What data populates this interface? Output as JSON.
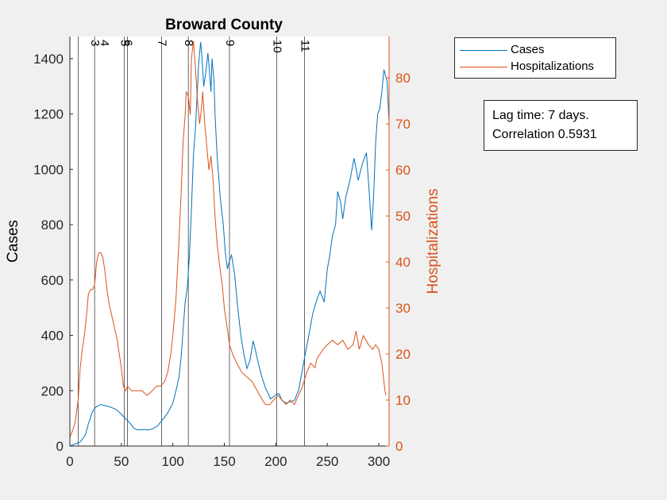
{
  "chart_data": {
    "type": "line",
    "title": "Broward County",
    "xlabel": "",
    "ylabel_left": "Cases",
    "ylabel_right": "Hospitalizations",
    "xlim": [
      0,
      310
    ],
    "ylim_left": [
      0,
      1480
    ],
    "ylim_right": [
      0,
      89
    ],
    "x_ticks": [
      0,
      50,
      100,
      150,
      200,
      250,
      300
    ],
    "y_ticks_left": [
      0,
      200,
      400,
      600,
      800,
      1000,
      1200,
      1400
    ],
    "y_ticks_right": [
      0,
      10,
      20,
      30,
      40,
      50,
      60,
      70,
      80
    ],
    "legend_position": "outside-top-right",
    "grid": false,
    "colors": {
      "cases": "#0072bd",
      "hospitalizations": "#d95319",
      "event_lines": "#000000"
    },
    "event_markers": [
      {
        "label": "3",
        "x": 24
      },
      {
        "label": "4",
        "x": 33
      },
      {
        "label": "5",
        "x": 53
      },
      {
        "label": "6",
        "x": 56
      },
      {
        "label": "7",
        "x": 89
      },
      {
        "label": "8",
        "x": 115
      },
      {
        "label": "9",
        "x": 155
      },
      {
        "label": "10",
        "x": 201
      },
      {
        "label": "11",
        "x": 228
      }
    ],
    "event_line_x": [
      8,
      24,
      53,
      56,
      89,
      115,
      155,
      201,
      228
    ],
    "series": [
      {
        "name": "Cases",
        "axis": "left",
        "points": [
          [
            0,
            0
          ],
          [
            10,
            15
          ],
          [
            15,
            40
          ],
          [
            18,
            80
          ],
          [
            22,
            125
          ],
          [
            25,
            140
          ],
          [
            30,
            150
          ],
          [
            35,
            145
          ],
          [
            40,
            140
          ],
          [
            45,
            132
          ],
          [
            50,
            115
          ],
          [
            55,
            95
          ],
          [
            58,
            85
          ],
          [
            62,
            65
          ],
          [
            66,
            58
          ],
          [
            72,
            60
          ],
          [
            76,
            58
          ],
          [
            80,
            62
          ],
          [
            85,
            72
          ],
          [
            90,
            95
          ],
          [
            95,
            120
          ],
          [
            100,
            155
          ],
          [
            103,
            200
          ],
          [
            106,
            250
          ],
          [
            108,
            320
          ],
          [
            110,
            420
          ],
          [
            112,
            520
          ],
          [
            114,
            570
          ],
          [
            116,
            680
          ],
          [
            118,
            850
          ],
          [
            120,
            1050
          ],
          [
            122,
            1150
          ],
          [
            124,
            1300
          ],
          [
            125,
            1380
          ],
          [
            127,
            1460
          ],
          [
            128,
            1420
          ],
          [
            130,
            1300
          ],
          [
            132,
            1350
          ],
          [
            134,
            1420
          ],
          [
            135,
            1380
          ],
          [
            137,
            1280
          ],
          [
            138,
            1400
          ],
          [
            140,
            1320
          ],
          [
            141,
            1200
          ],
          [
            143,
            1050
          ],
          [
            146,
            900
          ],
          [
            149,
            800
          ],
          [
            151,
            700
          ],
          [
            153,
            640
          ],
          [
            155,
            670
          ],
          [
            157,
            690
          ],
          [
            160,
            620
          ],
          [
            163,
            500
          ],
          [
            166,
            400
          ],
          [
            169,
            330
          ],
          [
            172,
            280
          ],
          [
            175,
            310
          ],
          [
            178,
            380
          ],
          [
            180,
            350
          ],
          [
            183,
            300
          ],
          [
            186,
            255
          ],
          [
            190,
            210
          ],
          [
            195,
            170
          ],
          [
            200,
            185
          ],
          [
            203,
            190
          ],
          [
            206,
            165
          ],
          [
            210,
            155
          ],
          [
            214,
            160
          ],
          [
            218,
            165
          ],
          [
            222,
            200
          ],
          [
            225,
            260
          ],
          [
            228,
            320
          ],
          [
            232,
            400
          ],
          [
            236,
            480
          ],
          [
            240,
            530
          ],
          [
            243,
            560
          ],
          [
            247,
            520
          ],
          [
            250,
            640
          ],
          [
            252,
            680
          ],
          [
            255,
            760
          ],
          [
            258,
            800
          ],
          [
            260,
            920
          ],
          [
            263,
            880
          ],
          [
            265,
            820
          ],
          [
            268,
            900
          ],
          [
            272,
            960
          ],
          [
            276,
            1040
          ],
          [
            280,
            960
          ],
          [
            284,
            1020
          ],
          [
            288,
            1060
          ],
          [
            291,
            900
          ],
          [
            293,
            780
          ],
          [
            295,
            900
          ],
          [
            297,
            1100
          ],
          [
            299,
            1200
          ],
          [
            301,
            1220
          ],
          [
            303,
            1280
          ],
          [
            305,
            1360
          ],
          [
            308,
            1320
          ],
          [
            310,
            1170
          ]
        ]
      },
      {
        "name": "Hospitalizations",
        "axis": "right",
        "points": [
          [
            0,
            2
          ],
          [
            2,
            3
          ],
          [
            5,
            5
          ],
          [
            8,
            10
          ],
          [
            10,
            17
          ],
          [
            12,
            21
          ],
          [
            14,
            24
          ],
          [
            16,
            28
          ],
          [
            18,
            33
          ],
          [
            20,
            34
          ],
          [
            22,
            34
          ],
          [
            24,
            35
          ],
          [
            26,
            40
          ],
          [
            28,
            42
          ],
          [
            30,
            42
          ],
          [
            32,
            41
          ],
          [
            34,
            38
          ],
          [
            36,
            34
          ],
          [
            38,
            31
          ],
          [
            40,
            29
          ],
          [
            42,
            27
          ],
          [
            44,
            25
          ],
          [
            46,
            23
          ],
          [
            48,
            20
          ],
          [
            50,
            17
          ],
          [
            52,
            13
          ],
          [
            54,
            12
          ],
          [
            56,
            13
          ],
          [
            60,
            12
          ],
          [
            65,
            12
          ],
          [
            70,
            12
          ],
          [
            75,
            11
          ],
          [
            80,
            12
          ],
          [
            84,
            13
          ],
          [
            88,
            13
          ],
          [
            92,
            14
          ],
          [
            95,
            16
          ],
          [
            98,
            20
          ],
          [
            100,
            24
          ],
          [
            103,
            32
          ],
          [
            106,
            45
          ],
          [
            108,
            55
          ],
          [
            110,
            66
          ],
          [
            112,
            72
          ],
          [
            113,
            77
          ],
          [
            115,
            76
          ],
          [
            117,
            72
          ],
          [
            118,
            84
          ],
          [
            120,
            88
          ],
          [
            122,
            82
          ],
          [
            124,
            75
          ],
          [
            126,
            70
          ],
          [
            128,
            74
          ],
          [
            129,
            77
          ],
          [
            131,
            70
          ],
          [
            133,
            65
          ],
          [
            135,
            60
          ],
          [
            137,
            63
          ],
          [
            139,
            58
          ],
          [
            141,
            50
          ],
          [
            143,
            44
          ],
          [
            145,
            40
          ],
          [
            148,
            35
          ],
          [
            150,
            30
          ],
          [
            152,
            27
          ],
          [
            155,
            22
          ],
          [
            158,
            20
          ],
          [
            162,
            18
          ],
          [
            167,
            16
          ],
          [
            172,
            15
          ],
          [
            177,
            14
          ],
          [
            182,
            12
          ],
          [
            187,
            10
          ],
          [
            190,
            9
          ],
          [
            194,
            9
          ],
          [
            198,
            10
          ],
          [
            202,
            11
          ],
          [
            206,
            10
          ],
          [
            210,
            9
          ],
          [
            214,
            10
          ],
          [
            218,
            9
          ],
          [
            222,
            11
          ],
          [
            226,
            13
          ],
          [
            230,
            16
          ],
          [
            234,
            18
          ],
          [
            238,
            17
          ],
          [
            240,
            19
          ],
          [
            243,
            20
          ],
          [
            246,
            21
          ],
          [
            250,
            22
          ],
          [
            255,
            23
          ],
          [
            260,
            22
          ],
          [
            265,
            23
          ],
          [
            270,
            21
          ],
          [
            275,
            22
          ],
          [
            278,
            25
          ],
          [
            281,
            21
          ],
          [
            285,
            24
          ],
          [
            290,
            22
          ],
          [
            294,
            21
          ],
          [
            297,
            22
          ],
          [
            300,
            21
          ],
          [
            303,
            18
          ],
          [
            306,
            12
          ],
          [
            307,
            11
          ]
        ]
      }
    ]
  },
  "annotation": {
    "line1": "Lag time: 7 days.",
    "line2": "Correlation 0.5931"
  }
}
